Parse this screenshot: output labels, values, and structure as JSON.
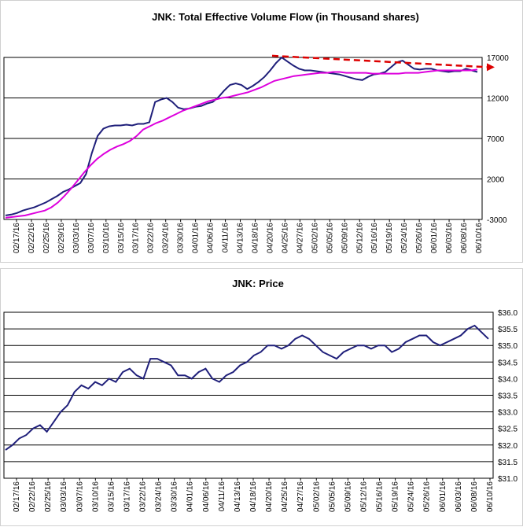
{
  "chart_data": [
    {
      "type": "line",
      "title": "JNK: Total Effective Volume Flow (in Thousand shares)",
      "xlabel": "",
      "ylabel": "",
      "ylim": [
        -3000,
        17000
      ],
      "yticks": [
        -3000,
        2000,
        7000,
        12000,
        17000
      ],
      "grid": true,
      "x_tick_labels": [
        "02/17/16",
        "02/22/16",
        "02/25/16",
        "02/29/16",
        "03/03/16",
        "03/07/16",
        "03/10/16",
        "03/15/16",
        "03/17/16",
        "03/22/16",
        "03/24/16",
        "03/30/16",
        "04/01/16",
        "04/06/16",
        "04/11/16",
        "04/13/16",
        "04/18/16",
        "04/20/16",
        "04/25/16",
        "04/27/16",
        "05/02/16",
        "05/05/16",
        "05/09/16",
        "05/12/16",
        "05/16/16",
        "05/19/16",
        "05/24/16",
        "05/26/16",
        "06/01/16",
        "06/03/16",
        "06/08/16",
        "06/10/16"
      ],
      "series": [
        {
          "color": "#1f1f7a",
          "values": [
            -2500,
            -2400,
            -2200,
            -1900,
            -1700,
            -1500,
            -1200,
            -900,
            -500,
            -100,
            400,
            700,
            1100,
            1500,
            2600,
            5200,
            7300,
            8200,
            8500,
            8600,
            8600,
            8700,
            8600,
            8800,
            8800,
            9000,
            11500,
            11800,
            12000,
            11500,
            10800,
            10600,
            10700,
            10900,
            11000,
            11300,
            11500,
            12100,
            12900,
            13600,
            13800,
            13600,
            13100,
            13500,
            14000,
            14600,
            15400,
            16300,
            17000,
            16500,
            16000,
            15600,
            15400,
            15400,
            15300,
            15200,
            15100,
            15000,
            14900,
            14700,
            14500,
            14300,
            14200,
            14600,
            14900,
            15000,
            15200,
            15800,
            16400,
            16600,
            16100,
            15600,
            15500,
            15600,
            15600,
            15400,
            15300,
            15200,
            15300,
            15300,
            15600,
            15400,
            15200
          ]
        },
        {
          "color": "#dd00dd",
          "values": [
            -2800,
            -2700,
            -2600,
            -2500,
            -2300,
            -2100,
            -1900,
            -1500,
            -900,
            -100,
            800,
            1800,
            2800,
            3700,
            4500,
            5100,
            5600,
            6000,
            6300,
            6700,
            7300,
            8100,
            8500,
            8900,
            9200,
            9600,
            10000,
            10400,
            10700,
            11000,
            11300,
            11600,
            11800,
            12000,
            12100,
            12300,
            12500,
            12700,
            13000,
            13300,
            13700,
            14100,
            14300,
            14500,
            14700,
            14800,
            14900,
            15000,
            15100,
            15100,
            15200,
            15200,
            15100,
            15100,
            15100,
            15100,
            15000,
            15000,
            15000,
            15000,
            15000,
            15100,
            15100,
            15100,
            15200,
            15300,
            15400,
            15400,
            15400,
            15400,
            15400,
            15400,
            15500
          ]
        },
        {
          "color": "#dd0000",
          "style": "dashed-trend",
          "values": [
            17200,
            15800
          ]
        }
      ]
    },
    {
      "type": "line",
      "title": "JNK: Price",
      "xlabel": "",
      "ylabel": "",
      "ylim": [
        31.0,
        36.0
      ],
      "yticks": [
        "$31.0",
        "$31.5",
        "$32.0",
        "$32.5",
        "$33.0",
        "$33.5",
        "$34.0",
        "$34.5",
        "$35.0",
        "$35.5",
        "$36.0"
      ],
      "grid": true,
      "x_tick_labels": [
        "02/17/16",
        "02/22/16",
        "02/25/16",
        "03/03/16",
        "03/07/16",
        "03/10/16",
        "03/15/16",
        "03/17/16",
        "03/22/16",
        "03/24/16",
        "03/30/16",
        "04/01/16",
        "04/06/16",
        "04/11/16",
        "04/13/16",
        "04/18/16",
        "04/20/16",
        "04/25/16",
        "04/27/16",
        "05/02/16",
        "05/05/16",
        "05/09/16",
        "05/12/16",
        "05/16/16",
        "05/19/16",
        "05/24/16",
        "05/26/16",
        "06/01/16",
        "06/03/16",
        "06/08/16",
        "06/10/16"
      ],
      "series": [
        {
          "color": "#1f1f7a",
          "values": [
            31.85,
            32.0,
            32.2,
            32.3,
            32.5,
            32.6,
            32.4,
            32.7,
            33.0,
            33.2,
            33.6,
            33.8,
            33.7,
            33.9,
            33.8,
            34.0,
            33.9,
            34.2,
            34.3,
            34.1,
            34.0,
            34.6,
            34.6,
            34.5,
            34.4,
            34.1,
            34.1,
            34.0,
            34.2,
            34.3,
            34.0,
            33.9,
            34.1,
            34.2,
            34.4,
            34.5,
            34.7,
            34.8,
            35.0,
            35.0,
            34.9,
            35.0,
            35.2,
            35.3,
            35.2,
            35.0,
            34.8,
            34.7,
            34.6,
            34.8,
            34.9,
            35.0,
            35.0,
            34.9,
            35.0,
            35.0,
            34.8,
            34.9,
            35.1,
            35.2,
            35.3,
            35.3,
            35.1,
            35.0,
            35.1,
            35.2,
            35.3,
            35.5,
            35.6,
            35.4,
            35.2
          ]
        }
      ]
    }
  ]
}
